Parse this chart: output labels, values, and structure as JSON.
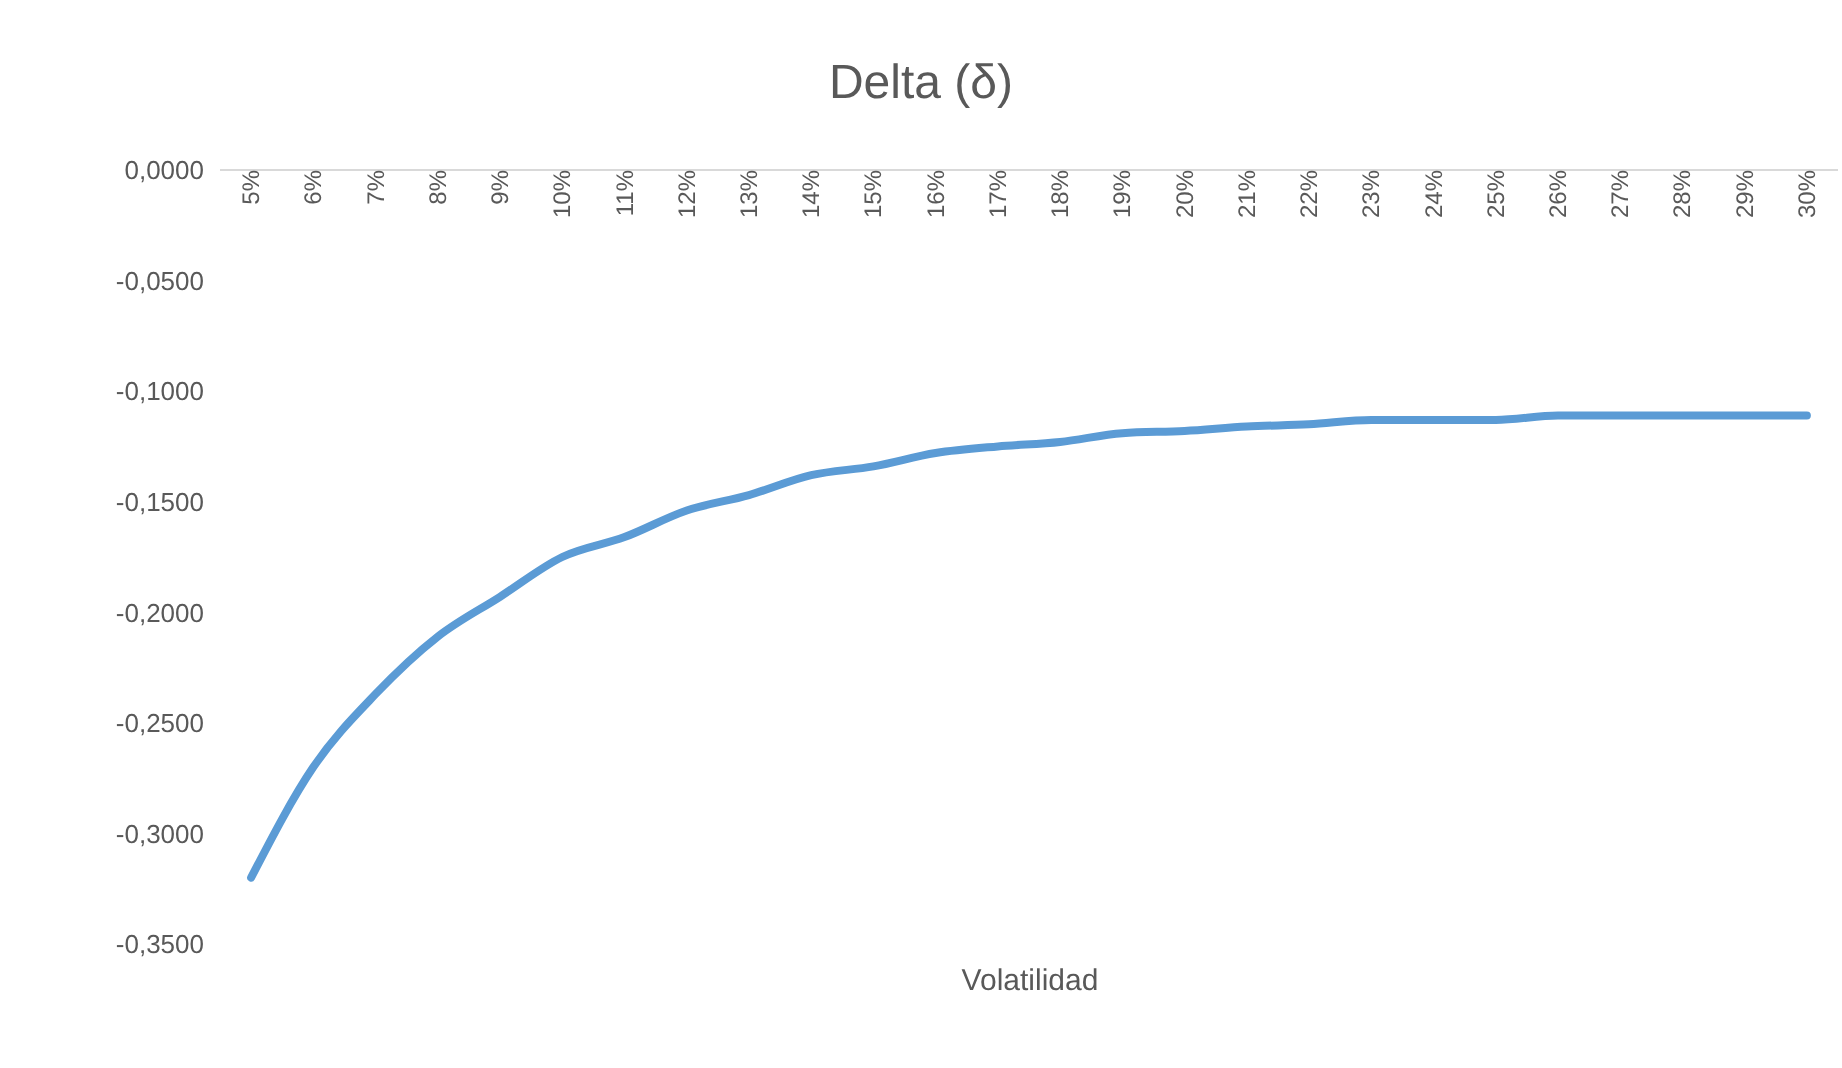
{
  "chart_data": {
    "type": "line",
    "title": "Delta (δ)",
    "xlabel": "Volatilidad",
    "categories": [
      "5%",
      "6%",
      "7%",
      "8%",
      "9%",
      "10%",
      "11%",
      "12%",
      "13%",
      "14%",
      "15%",
      "16%",
      "17%",
      "18%",
      "19%",
      "20%",
      "21%",
      "22%",
      "23%",
      "24%",
      "25%",
      "26%",
      "27%",
      "28%",
      "29%",
      "30%"
    ],
    "series": [
      {
        "color": "#5b9bd5",
        "values": [
          -0.32,
          -0.27,
          -0.237,
          -0.211,
          -0.193,
          -0.175,
          -0.166,
          -0.154,
          -0.147,
          -0.138,
          -0.134,
          -0.128,
          -0.125,
          -0.123,
          -0.119,
          -0.118,
          -0.116,
          -0.115,
          -0.113,
          -0.113,
          -0.113,
          -0.111,
          -0.111,
          -0.111,
          -0.111,
          -0.111
        ]
      }
    ],
    "ylim": [
      -0.35,
      0
    ],
    "yticks": [
      {
        "value": 0,
        "label": "0,0000"
      },
      {
        "value": -0.05,
        "label": "-0,0500"
      },
      {
        "value": -0.1,
        "label": "-0,1000"
      },
      {
        "value": -0.15,
        "label": "-0,1500"
      },
      {
        "value": -0.2,
        "label": "-0,2000"
      },
      {
        "value": -0.25,
        "label": "-0,2500"
      },
      {
        "value": -0.3,
        "label": "-0,3000"
      },
      {
        "value": -0.35,
        "label": "-0,3500"
      }
    ],
    "grid": false,
    "legend": false,
    "marker": "none",
    "line_style": "solid"
  }
}
